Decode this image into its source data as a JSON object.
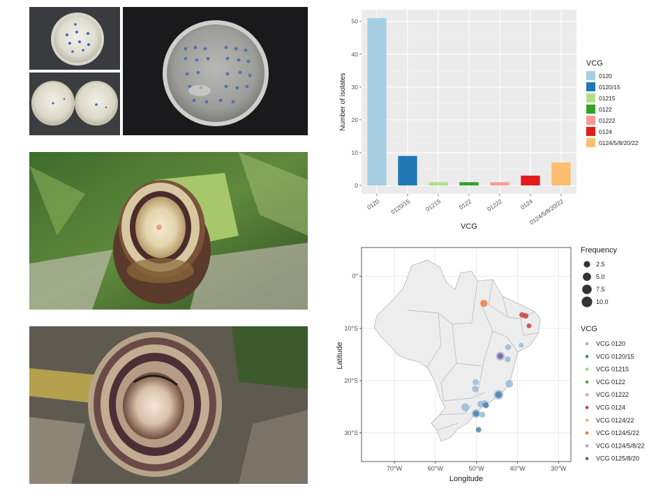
{
  "colors": {
    "grey_panel": "#ebebeb",
    "map_land": "#ededed",
    "map_border": "#b4b4b4"
  },
  "photos": [
    {
      "name": "petri-dish-single-photo"
    },
    {
      "name": "petri-dish-pair-photo"
    },
    {
      "name": "petri-dish-large-photo"
    },
    {
      "name": "banana-stem-cross-section-photo"
    },
    {
      "name": "banana-pseudostem-cross-section-photo"
    }
  ],
  "chart_data": [
    {
      "type": "bar",
      "xlabel": "VCG",
      "ylabel": "Number of isolates",
      "ylim": [
        0,
        51
      ],
      "yticks": [
        0,
        10,
        20,
        30,
        40,
        50
      ],
      "grid": true,
      "legend_position": "right",
      "legend_title": "VCG",
      "categories": [
        "0120",
        "0120/15",
        "01215",
        "0122",
        "01222",
        "0124",
        "0124/5/8/20/22"
      ],
      "values": [
        51,
        9,
        1,
        1,
        1,
        3,
        7
      ],
      "colors": [
        "#a6cee3",
        "#1f78b4",
        "#b2df8a",
        "#33a02c",
        "#fb9a99",
        "#e31a1c",
        "#fdbf6f"
      ]
    },
    {
      "type": "scatter",
      "xlabel": "Longitude",
      "ylabel": "Latitude",
      "xlim": [
        -78,
        -27
      ],
      "ylim": [
        -35.5,
        5.5
      ],
      "xticks": [
        -70,
        -60,
        -50,
        -40,
        -30
      ],
      "xtick_labels": [
        "70°W",
        "60°W",
        "50°W",
        "40°W",
        "30°W"
      ],
      "yticks": [
        0,
        -10,
        -20,
        -30
      ],
      "ytick_labels": [
        "0°",
        "10°S",
        "20°S",
        "30°S"
      ],
      "grid": true,
      "legend_position": "right",
      "size_legend": {
        "title": "Frequency",
        "values": [
          2.5,
          5.0,
          7.5,
          10.0
        ],
        "labels": [
          "2.5",
          "5.0",
          "7.5",
          "10.0"
        ]
      },
      "color_legend": {
        "title": "VCG",
        "entries": [
          {
            "label": "VCG 0120",
            "color": "#93b8d8"
          },
          {
            "label": "VCG 0120/15",
            "color": "#4a7fa3"
          },
          {
            "label": "VCG 01215",
            "color": "#a7d185"
          },
          {
            "label": "VCG 0122",
            "color": "#5c9a48"
          },
          {
            "label": "VCG 01222",
            "color": "#ef9a96"
          },
          {
            "label": "VCG 0124",
            "color": "#cb3b36"
          },
          {
            "label": "VCG 0124/22",
            "color": "#f3b46b"
          },
          {
            "label": "VCG 0124/5/22",
            "color": "#ec7c36"
          },
          {
            "label": "VCG 0124/5/8/22",
            "color": "#b0a8cc"
          },
          {
            "label": "VCG 0125/8/20",
            "color": "#6a5c92"
          }
        ]
      },
      "points": [
        {
          "lon": -48.2,
          "lat": -5.2,
          "freq": 3.5,
          "vcg": "VCG 0124/5/22"
        },
        {
          "lon": -38.9,
          "lat": -7.4,
          "freq": 1.5,
          "vcg": "VCG 0124"
        },
        {
          "lon": -38.0,
          "lat": -7.6,
          "freq": 1.5,
          "vcg": "VCG 0124"
        },
        {
          "lon": -37.2,
          "lat": -9.5,
          "freq": 1.0,
          "vcg": "VCG 0124"
        },
        {
          "lon": -39.1,
          "lat": -13.2,
          "freq": 1.0,
          "vcg": "VCG 0120"
        },
        {
          "lon": -42.3,
          "lat": -13.6,
          "freq": 2.0,
          "vcg": "VCG 0120"
        },
        {
          "lon": -44.2,
          "lat": -15.3,
          "freq": 6.0,
          "vcg": "VCG 0124/5/8/22"
        },
        {
          "lon": -44.2,
          "lat": -15.3,
          "freq": 1.5,
          "vcg": "VCG 0125/8/20"
        },
        {
          "lon": -42.4,
          "lat": -15.9,
          "freq": 2.0,
          "vcg": "VCG 0120"
        },
        {
          "lon": -42.0,
          "lat": -20.6,
          "freq": 4.0,
          "vcg": "VCG 0120"
        },
        {
          "lon": -50.2,
          "lat": -20.3,
          "freq": 2.0,
          "vcg": "VCG 0120"
        },
        {
          "lon": -50.3,
          "lat": -21.6,
          "freq": 2.5,
          "vcg": "VCG 0120"
        },
        {
          "lon": -44.6,
          "lat": -22.7,
          "freq": 7.5,
          "vcg": "VCG 0120"
        },
        {
          "lon": -44.6,
          "lat": -22.7,
          "freq": 2.5,
          "vcg": "VCG 0120/15"
        },
        {
          "lon": -48.0,
          "lat": -24.4,
          "freq": 3.0,
          "vcg": "VCG 0120"
        },
        {
          "lon": -47.7,
          "lat": -24.7,
          "freq": 2.0,
          "vcg": "VCG 0120/15"
        },
        {
          "lon": -49.0,
          "lat": -24.5,
          "freq": 2.5,
          "vcg": "VCG 0120"
        },
        {
          "lon": -52.7,
          "lat": -25.1,
          "freq": 4.5,
          "vcg": "VCG 0120"
        },
        {
          "lon": -50.1,
          "lat": -26.3,
          "freq": 5.5,
          "vcg": "VCG 0120"
        },
        {
          "lon": -50.1,
          "lat": -26.3,
          "freq": 2.0,
          "vcg": "VCG 0120/15"
        },
        {
          "lon": -48.6,
          "lat": -26.5,
          "freq": 2.0,
          "vcg": "VCG 0120"
        },
        {
          "lon": -49.5,
          "lat": -29.4,
          "freq": 1.5,
          "vcg": "VCG 0120/15"
        }
      ]
    }
  ]
}
